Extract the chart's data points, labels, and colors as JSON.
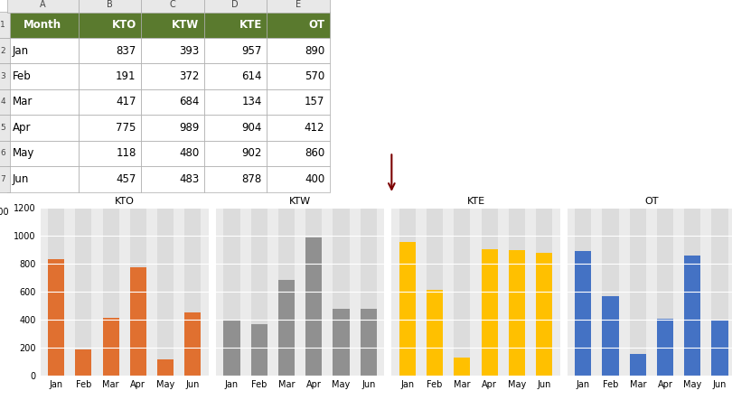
{
  "months": [
    "Jan",
    "Feb",
    "Mar",
    "Apr",
    "May",
    "Jun"
  ],
  "KTO": [
    837,
    191,
    417,
    775,
    118,
    457
  ],
  "KTW": [
    393,
    372,
    684,
    989,
    480,
    483
  ],
  "KTE": [
    957,
    614,
    134,
    904,
    902,
    878
  ],
  "OT": [
    890,
    570,
    157,
    412,
    860,
    400
  ],
  "series_labels": [
    "KTO",
    "KTW",
    "KTE",
    "OT"
  ],
  "bar_colors": [
    "#E07030",
    "#909090",
    "#FFC000",
    "#4472C4"
  ],
  "bg_color_bar": "#DCDCDC",
  "plot_bg": "#EBEBEB",
  "fig_bg": "#FFFFFF",
  "ylim": [
    0,
    1200
  ],
  "yticks": [
    0,
    200,
    400,
    600,
    800,
    1000,
    1200
  ],
  "header_bg": "#5A7A2E",
  "header_fg": "#FFFFFF",
  "cell_bg": "#FFFFFF",
  "grid_color": "#AAAAAA",
  "table_headers": [
    "Month",
    "KTO",
    "KTW",
    "KTE",
    "OT"
  ],
  "table_data": [
    [
      "Jan",
      837,
      393,
      957,
      890
    ],
    [
      "Feb",
      191,
      372,
      614,
      570
    ],
    [
      "Mar",
      417,
      684,
      134,
      157
    ],
    [
      "Apr",
      775,
      989,
      904,
      412
    ],
    [
      "May",
      118,
      480,
      902,
      860
    ],
    [
      "Jun",
      457,
      483,
      878,
      400
    ]
  ],
  "title_fontsize": 8,
  "tick_fontsize": 7,
  "table_fontsize": 8.5,
  "arrow_color": "#7B0000"
}
